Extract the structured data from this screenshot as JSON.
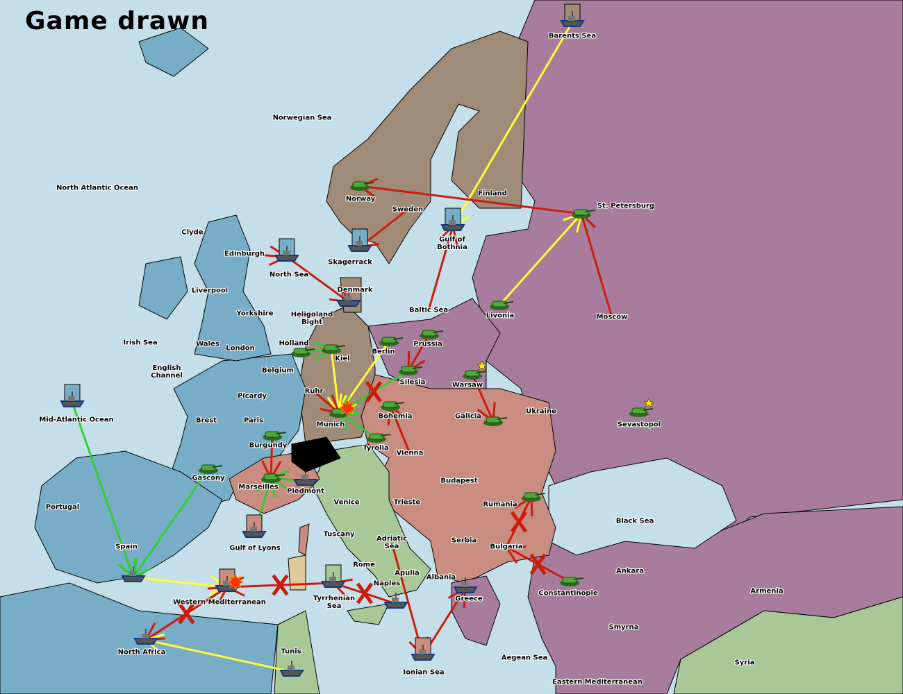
{
  "title": "Game drawn",
  "colors": {
    "sea": "#c5dfea",
    "russia_turkey": "#a87c9c",
    "england_france": "#78adc8",
    "germany": "#a08a78",
    "austria": "#c98c80",
    "italy": "#a8c898",
    "neutral": "#000000",
    "failed": "#cc1b0b",
    "move": "#ffff33",
    "support": "#33cc33"
  },
  "territories": [
    "Norwegian Sea",
    "North Atlantic Ocean",
    "Barents Sea",
    "Finland",
    "Norway",
    "Sweden",
    "St. Petersburg",
    "Clyde",
    "Edinburgh",
    "North Sea",
    "Skagerrack",
    "Gulf of\nBothnia",
    "Liverpool",
    "Yorkshire",
    "Denmark",
    "Baltic Sea",
    "Livonia",
    "Moscow",
    "Irish Sea",
    "Wales",
    "London",
    "Holland",
    "Heligoland\nBight",
    "Kiel",
    "Berlin",
    "Prussia",
    "English\nChannel",
    "Belgium",
    "Silesia",
    "Warsaw",
    "Picardy",
    "Ruhr",
    "Ukraine",
    "Brest",
    "Paris",
    "Munich",
    "Bohemia",
    "Galicia",
    "Sevastopol",
    "Mid-Atlantic Ocean",
    "Burgundy",
    "Tyrolia",
    "Vienna",
    "Gascony",
    "Budapest",
    "Marseilles",
    "Piedmont",
    "Venice",
    "Trieste",
    "Rumania",
    "Portugal",
    "Black Sea",
    "Tuscany",
    "Adriatic\nSea",
    "Serbia",
    "Bulgaria",
    "Spain",
    "Gulf of Lyons",
    "Rome",
    "Apulia",
    "Albania",
    "Ankara",
    "Naples",
    "Armenia",
    "Constantinople",
    "Greece",
    "Western Mediterranean",
    "Tyrrhenian\nSea",
    "Smyrna",
    "North Africa",
    "Tunis",
    "Aegean Sea",
    "Ionian Sea",
    "Syria",
    "Eastern Mediterranean"
  ],
  "units": [
    {
      "type": "fleet",
      "at": "Barents Sea",
      "flag": "germany"
    },
    {
      "type": "army",
      "at": "Norway"
    },
    {
      "type": "army",
      "at": "St. Petersburg"
    },
    {
      "type": "fleet",
      "at": "Gulf of Bothnia",
      "flag": "england_france"
    },
    {
      "type": "fleet",
      "at": "Skagerrack",
      "flag": "england_france"
    },
    {
      "type": "fleet",
      "at": "North Sea",
      "flag": "england_france"
    },
    {
      "type": "fleet",
      "at": "Denmark"
    },
    {
      "type": "army",
      "at": "Livonia"
    },
    {
      "type": "army",
      "at": "Berlin"
    },
    {
      "type": "army",
      "at": "Prussia"
    },
    {
      "type": "army",
      "at": "Kiel"
    },
    {
      "type": "army",
      "at": "Holland"
    },
    {
      "type": "army",
      "at": "Silesia"
    },
    {
      "type": "army",
      "at": "Warsaw",
      "star": true
    },
    {
      "type": "army",
      "at": "Galicia"
    },
    {
      "type": "army",
      "at": "Sevastopol",
      "star": true
    },
    {
      "type": "army",
      "at": "Munich",
      "dislodged": true
    },
    {
      "type": "army",
      "at": "Bohemia"
    },
    {
      "type": "army",
      "at": "Tyrolia"
    },
    {
      "type": "army",
      "at": "Burgundy"
    },
    {
      "type": "army",
      "at": "Gascony"
    },
    {
      "type": "army",
      "at": "Marseilles"
    },
    {
      "type": "fleet",
      "at": "Piedmont"
    },
    {
      "type": "fleet",
      "at": "Mid-Atlantic Ocean",
      "flag": "england_france"
    },
    {
      "type": "fleet",
      "at": "Gulf of Lyons",
      "flag": "austria"
    },
    {
      "type": "fleet",
      "at": "Spain"
    },
    {
      "type": "fleet",
      "at": "Western Mediterranean",
      "flag": "austria",
      "dislodged": true
    },
    {
      "type": "fleet",
      "at": "Tyrrhenian Sea",
      "flag": "italy"
    },
    {
      "type": "fleet",
      "at": "Naples"
    },
    {
      "type": "fleet",
      "at": "North Africa"
    },
    {
      "type": "fleet",
      "at": "Tunis"
    },
    {
      "type": "fleet",
      "at": "Ionian Sea",
      "flag": "austria"
    },
    {
      "type": "fleet",
      "at": "Greece"
    },
    {
      "type": "army",
      "at": "Rumania"
    },
    {
      "type": "army",
      "at": "Constantinople"
    }
  ],
  "orders": [
    {
      "from": "Barents Sea",
      "to": "Gulf of Bothnia",
      "color": "move"
    },
    {
      "from": "St. Petersburg",
      "to": "Norway",
      "color": "failed"
    },
    {
      "from": "Moscow",
      "to": "St. Petersburg",
      "color": "failed"
    },
    {
      "from": "Livonia",
      "to": "St. Petersburg",
      "color": "move"
    },
    {
      "from": "Sweden",
      "to": "Skagerrack",
      "color": "failed"
    },
    {
      "from": "Edinburgh",
      "to": "North Sea",
      "color": "failed"
    },
    {
      "from": "North Sea",
      "to": "Denmark",
      "color": "failed"
    },
    {
      "from": "Berlin",
      "to": "Munich",
      "color": "move"
    },
    {
      "from": "Kiel",
      "to": "Munich",
      "color": "move"
    },
    {
      "from": "Ruhr",
      "to": "Munich",
      "color": "failed"
    },
    {
      "from": "Silesia",
      "to": "Munich",
      "color": "support",
      "cut": true
    },
    {
      "from": "Holland",
      "to": "Kiel",
      "color": "support"
    },
    {
      "from": "Tyrolia",
      "to": "Munich",
      "color": "support"
    },
    {
      "from": "Prussia",
      "to": "Silesia",
      "color": "failed"
    },
    {
      "from": "Warsaw",
      "to": "Galicia",
      "color": "failed"
    },
    {
      "from": "Vienna",
      "to": "Bohemia",
      "color": "failed"
    },
    {
      "from": "Burgundy",
      "to": "Marseilles",
      "color": "failed"
    },
    {
      "from": "Piedmont",
      "to": "Marseilles",
      "color": "support"
    },
    {
      "from": "Gulf of Lyons",
      "to": "Marseilles",
      "color": "support"
    },
    {
      "from": "Gascony",
      "to": "Spain",
      "color": "support"
    },
    {
      "from": "Mid-Atlantic Ocean",
      "to": "Spain",
      "color": "support"
    },
    {
      "from": "Spain",
      "to": "Western Mediterranean",
      "color": "move"
    },
    {
      "from": "Tyrrhenian Sea",
      "to": "Western Mediterranean",
      "color": "failed",
      "cut": true
    },
    {
      "from": "Naples",
      "to": "Tyrrhenian Sea",
      "color": "failed",
      "cut": true
    },
    {
      "from": "North Africa",
      "to": "Western Mediterranean",
      "color": "failed",
      "cut": true
    },
    {
      "from": "Western Mediterranean",
      "to": "North Africa",
      "color": "failed",
      "cut": true
    },
    {
      "from": "Tunis",
      "to": "North Africa",
      "color": "move"
    },
    {
      "from": "Adriatic Sea",
      "to": "Ionian Sea",
      "color": "failed"
    },
    {
      "from": "Ionian Sea",
      "to": "Greece",
      "color": "failed"
    },
    {
      "from": "Bulgaria",
      "to": "Rumania",
      "color": "failed",
      "cut": true
    },
    {
      "from": "Constantinople",
      "to": "Bulgaria",
      "color": "failed",
      "cut": true
    },
    {
      "from": "Baltic Sea",
      "to": "Gulf of Bothnia",
      "color": "failed"
    }
  ]
}
